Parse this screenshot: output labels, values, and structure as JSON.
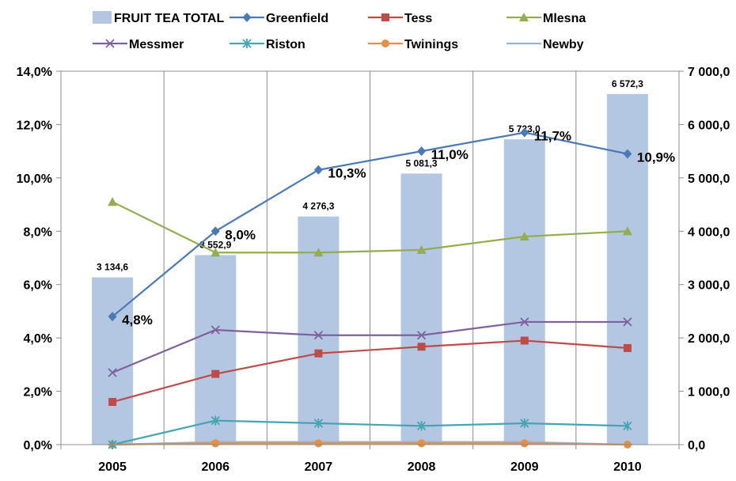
{
  "chart_data": {
    "type": "bar+line",
    "title": "",
    "categories": [
      "2005",
      "2006",
      "2007",
      "2008",
      "2009",
      "2010"
    ],
    "y_left": {
      "min": 0,
      "max": 14,
      "step": 2,
      "ticks": [
        "0,0%",
        "2,0%",
        "4,0%",
        "6,0%",
        "8,0%",
        "10,0%",
        "12,0%",
        "14,0%"
      ]
    },
    "y_right": {
      "min": 0,
      "max": 7000,
      "step": 1000,
      "ticks": [
        "0,0",
        "1 000,0",
        "2 000,0",
        "3 000,0",
        "4 000,0",
        "5 000,0",
        "6 000,0",
        "7 000,0"
      ]
    },
    "bars": {
      "name": "FRUIT TEA TOTAL",
      "axis": "right",
      "color": "#B3C7E3",
      "values": [
        3134.6,
        3552.9,
        4276.3,
        5081.3,
        5723.0,
        6572.3
      ],
      "labels": [
        "3 134,6",
        "3 552,9",
        "4 276,3",
        "5 081,3",
        "5 723,0",
        "6 572,3"
      ]
    },
    "series": [
      {
        "name": "Greenfield",
        "color": "#4A7AB5",
        "marker": "diamond",
        "values": [
          4.8,
          8.0,
          10.3,
          11.0,
          11.7,
          10.9
        ],
        "labels": [
          "4,8%",
          "8,0%",
          "10,3%",
          "11,0%",
          "11,7%",
          "10,9%"
        ]
      },
      {
        "name": "Tess",
        "color": "#BE4B48",
        "marker": "square",
        "values": [
          1.6,
          2.65,
          3.42,
          3.67,
          3.9,
          3.62
        ]
      },
      {
        "name": "Mlesna",
        "color": "#93AD4F",
        "marker": "triangle",
        "values": [
          9.1,
          7.2,
          7.2,
          7.3,
          7.8,
          8.0
        ]
      },
      {
        "name": "Messmer",
        "color": "#7E619E",
        "marker": "x",
        "values": [
          2.7,
          4.3,
          4.1,
          4.1,
          4.6,
          4.6
        ]
      },
      {
        "name": "Riston",
        "color": "#44A5B5",
        "marker": "star",
        "values": [
          0.0,
          0.9,
          0.8,
          0.7,
          0.8,
          0.7
        ]
      },
      {
        "name": "Twinings",
        "color": "#E3903F",
        "marker": "circle",
        "values": [
          0.0,
          0.05,
          0.05,
          0.05,
          0.05,
          0.0
        ]
      },
      {
        "name": "Newby",
        "color": "#9AB3D3",
        "marker": "dash",
        "values": [
          0.0,
          0.1,
          0.1,
          0.1,
          0.1,
          0.0
        ]
      }
    ],
    "legend": {
      "placement": "top",
      "entries": [
        "FRUIT TEA TOTAL",
        "Greenfield",
        "Tess",
        "Mlesna",
        "Messmer",
        "Riston",
        "Twinings",
        "Newby"
      ]
    },
    "grid": {
      "vertical": true,
      "horizontal": false
    }
  }
}
